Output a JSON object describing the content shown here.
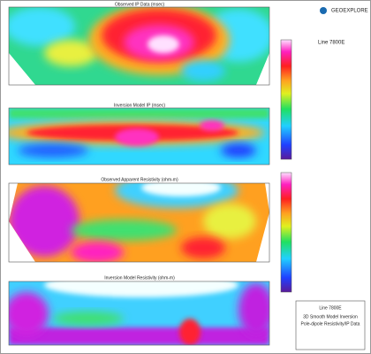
{
  "logo": "GEOEXPLORE",
  "panels": [
    {
      "title": "Observed IP Data (msec)"
    },
    {
      "title": "Inversion Model IP (msec)"
    },
    {
      "title": "Observed Apparent Resistivity (ohm-m)"
    },
    {
      "title": "Inversion Model Resistivity (ohm-m)"
    }
  ],
  "legend": {
    "line": "Line 7800E"
  },
  "title_block": {
    "line": "Line 7800E",
    "lines": [
      "3D Smooth Model Inversion",
      "Pole-dipole Resistivity/IP Data"
    ]
  }
}
